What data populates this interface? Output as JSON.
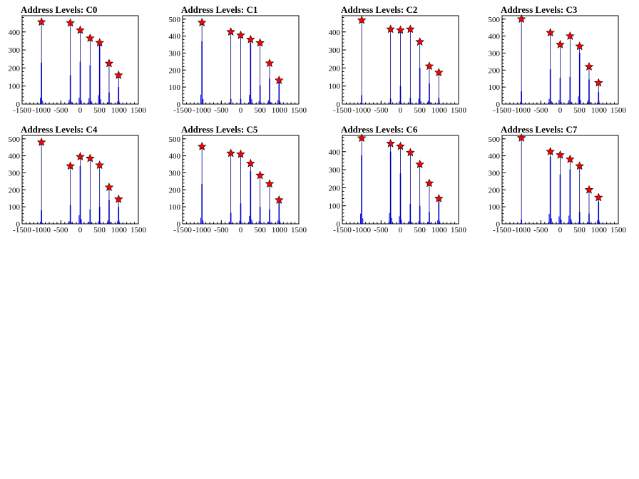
{
  "chart_data": [
    {
      "type": "bar",
      "title": "Address Levels: C0",
      "xlim": [
        -1500,
        1500
      ],
      "ylim": [
        0,
        490
      ],
      "xticks": [
        -1500,
        -1000,
        -500,
        0,
        500,
        1000,
        1500
      ],
      "yticks": [
        0,
        100,
        200,
        300,
        400
      ],
      "peaks": [
        [
          -1000,
          455
        ],
        [
          -255,
          450
        ],
        [
          0,
          410
        ],
        [
          255,
          365
        ],
        [
          500,
          340
        ],
        [
          745,
          225
        ],
        [
          990,
          160
        ]
      ],
      "spikes": [
        [
          -1000,
          230
        ],
        [
          -255,
          160
        ],
        [
          0,
          235
        ],
        [
          255,
          215
        ],
        [
          500,
          330
        ],
        [
          745,
          65
        ],
        [
          990,
          95
        ]
      ]
    },
    {
      "type": "bar",
      "title": "Address Levels: C1",
      "xlim": [
        -1500,
        1500
      ],
      "ylim": [
        0,
        520
      ],
      "xticks": [
        -1500,
        -1000,
        -500,
        0,
        500,
        1000,
        1500
      ],
      "yticks": [
        0,
        100,
        200,
        300,
        400,
        500
      ],
      "peaks": [
        [
          -1000,
          480
        ],
        [
          -255,
          425
        ],
        [
          0,
          405
        ],
        [
          255,
          380
        ],
        [
          500,
          360
        ],
        [
          745,
          240
        ],
        [
          990,
          140
        ]
      ],
      "spikes": [
        [
          -1000,
          370
        ],
        [
          -255,
          30
        ],
        [
          0,
          30
        ],
        [
          255,
          360
        ],
        [
          500,
          110
        ],
        [
          745,
          150
        ],
        [
          990,
          155
        ]
      ]
    },
    {
      "type": "bar",
      "title": "Address Levels: C2",
      "xlim": [
        -1500,
        1500
      ],
      "ylim": [
        0,
        490
      ],
      "xticks": [
        -1500,
        -1000,
        -500,
        0,
        500,
        1000,
        1500
      ],
      "yticks": [
        0,
        100,
        200,
        300,
        400
      ],
      "peaks": [
        [
          -1000,
          465
        ],
        [
          -255,
          415
        ],
        [
          0,
          410
        ],
        [
          255,
          415
        ],
        [
          500,
          345
        ],
        [
          745,
          210
        ],
        [
          990,
          175
        ]
      ],
      "spikes": [
        [
          -1000,
          50
        ],
        [
          -255,
          30
        ],
        [
          0,
          100
        ],
        [
          255,
          35
        ],
        [
          500,
          200
        ],
        [
          745,
          115
        ],
        [
          990,
          35
        ]
      ]
    },
    {
      "type": "bar",
      "title": "Address Levels: C3",
      "xlim": [
        -1500,
        1500
      ],
      "ylim": [
        0,
        520
      ],
      "xticks": [
        -1500,
        -1000,
        -500,
        0,
        500,
        1000,
        1500
      ],
      "yticks": [
        0,
        100,
        200,
        300,
        400,
        500
      ],
      "peaks": [
        [
          -1000,
          500
        ],
        [
          -255,
          420
        ],
        [
          0,
          350
        ],
        [
          255,
          400
        ],
        [
          500,
          340
        ],
        [
          745,
          220
        ],
        [
          990,
          125
        ]
      ],
      "spikes": [
        [
          -1000,
          75
        ],
        [
          -255,
          205
        ],
        [
          0,
          155
        ],
        [
          255,
          160
        ],
        [
          500,
          300
        ],
        [
          745,
          145
        ],
        [
          990,
          70
        ]
      ]
    },
    {
      "type": "bar",
      "title": "Address Levels: C4",
      "xlim": [
        -1500,
        1500
      ],
      "ylim": [
        0,
        520
      ],
      "xticks": [
        -1500,
        -1000,
        -500,
        0,
        500,
        1000,
        1500
      ],
      "yticks": [
        0,
        100,
        200,
        300,
        400,
        500
      ],
      "peaks": [
        [
          -1000,
          480
        ],
        [
          -255,
          340
        ],
        [
          0,
          395
        ],
        [
          255,
          385
        ],
        [
          500,
          345
        ],
        [
          745,
          215
        ],
        [
          990,
          145
        ]
      ],
      "spikes": [
        [
          -1000,
          80
        ],
        [
          -255,
          110
        ],
        [
          0,
          340
        ],
        [
          255,
          85
        ],
        [
          500,
          100
        ],
        [
          745,
          140
        ],
        [
          990,
          100
        ]
      ]
    },
    {
      "type": "bar",
      "title": "Address Levels: C5",
      "xlim": [
        -1500,
        1500
      ],
      "ylim": [
        0,
        520
      ],
      "xticks": [
        -1500,
        -1000,
        -500,
        0,
        500,
        1000,
        1500
      ],
      "yticks": [
        0,
        100,
        200,
        300,
        400,
        500
      ],
      "peaks": [
        [
          -1000,
          455
        ],
        [
          -255,
          415
        ],
        [
          0,
          410
        ],
        [
          255,
          355
        ],
        [
          500,
          285
        ],
        [
          745,
          235
        ],
        [
          990,
          140
        ]
      ],
      "spikes": [
        [
          -1000,
          235
        ],
        [
          -255,
          65
        ],
        [
          0,
          120
        ],
        [
          255,
          310
        ],
        [
          500,
          100
        ],
        [
          745,
          85
        ],
        [
          990,
          130
        ]
      ]
    },
    {
      "type": "bar",
      "title": "Address Levels: C6",
      "xlim": [
        -1500,
        1500
      ],
      "ylim": [
        0,
        490
      ],
      "xticks": [
        -1500,
        -1000,
        -500,
        0,
        500,
        1000,
        1500
      ],
      "yticks": [
        0,
        100,
        200,
        300,
        400
      ],
      "peaks": [
        [
          -1000,
          475
        ],
        [
          -255,
          445
        ],
        [
          0,
          430
        ],
        [
          255,
          395
        ],
        [
          500,
          330
        ],
        [
          745,
          225
        ],
        [
          990,
          140
        ]
      ],
      "spikes": [
        [
          -1000,
          380
        ],
        [
          -255,
          400
        ],
        [
          0,
          280
        ],
        [
          255,
          110
        ],
        [
          500,
          100
        ],
        [
          745,
          65
        ],
        [
          990,
          125
        ]
      ]
    },
    {
      "type": "bar",
      "title": "Address Levels: C7",
      "xlim": [
        -1500,
        1500
      ],
      "ylim": [
        0,
        520
      ],
      "xticks": [
        -1500,
        -1000,
        -500,
        0,
        500,
        1000,
        1500
      ],
      "yticks": [
        0,
        100,
        200,
        300,
        400,
        500
      ],
      "peaks": [
        [
          -1000,
          505
        ],
        [
          -255,
          425
        ],
        [
          0,
          405
        ],
        [
          255,
          380
        ],
        [
          500,
          340
        ],
        [
          745,
          200
        ],
        [
          990,
          155
        ]
      ],
      "spikes": [
        [
          -1000,
          25
        ],
        [
          -255,
          395
        ],
        [
          0,
          290
        ],
        [
          255,
          320
        ],
        [
          500,
          70
        ],
        [
          745,
          60
        ],
        [
          990,
          130
        ]
      ]
    }
  ],
  "colors": {
    "spike": "#0000ff",
    "peak_fill": "#ff0000",
    "peak_stroke": "#000000",
    "axis": "#000000"
  }
}
